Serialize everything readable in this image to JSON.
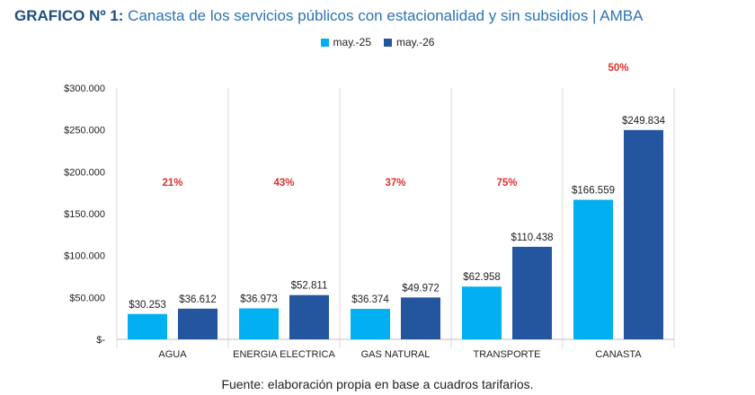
{
  "header": {
    "title_prefix": "GRAFICO Nº 1:",
    "title_text": " Canasta de los servicios públicos con estacionalidad y sin subsidios | AMBA"
  },
  "footer": {
    "source": "Fuente: elaboración propia en base a cuadros tarifarios."
  },
  "colors": {
    "series_1": "#00b0f0",
    "series_2": "#2456a0",
    "pct_label": "#e03030",
    "title_prefix": "#1d4e86",
    "title_text": "#2d73b4"
  },
  "chart_data": {
    "type": "bar",
    "categories": [
      "AGUA",
      "ENERGIA ELECTRICA",
      "GAS NATURAL",
      "TRANSPORTE",
      "CANASTA"
    ],
    "series": [
      {
        "name": "may.-25",
        "values": [
          30253,
          36973,
          36374,
          62958,
          166559
        ],
        "labels": [
          "$30.253",
          "$36.973",
          "$36.374",
          "$62.958",
          "$166.559"
        ]
      },
      {
        "name": "may.-26",
        "values": [
          36612,
          52811,
          49972,
          110438,
          249834
        ],
        "labels": [
          "$36.612",
          "$52.811",
          "$49.972",
          "$110.438",
          "$249.834"
        ]
      }
    ],
    "pct_change": [
      "21%",
      "43%",
      "37%",
      "75%",
      "50%"
    ],
    "ylim": [
      0,
      300000
    ],
    "yticks": [
      0,
      50000,
      100000,
      150000,
      200000,
      250000,
      300000
    ],
    "ytick_labels": [
      "$-",
      "$50.000",
      "$100.000",
      "$150.000",
      "$200.000",
      "$250.000",
      "$300.000"
    ],
    "legend_position": "top-center",
    "grid": false
  }
}
